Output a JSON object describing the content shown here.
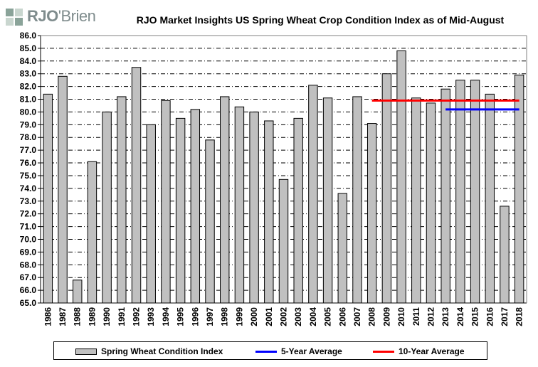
{
  "logo": {
    "text_bold": "RJO",
    "text_rest": "'Brien"
  },
  "chart_data": {
    "type": "bar",
    "title": "RJO Market Insights US Spring Wheat Crop Condition Index as of Mid-August",
    "xlabel": "",
    "ylabel": "",
    "ylim": [
      65.0,
      86.0
    ],
    "ytick_step": 1.0,
    "grid": true,
    "legend_position": "bottom",
    "categories": [
      "1986",
      "1987",
      "1988",
      "1989",
      "1990",
      "1991",
      "1992",
      "1993",
      "1994",
      "1995",
      "1996",
      "1997",
      "1998",
      "1999",
      "2000",
      "2001",
      "2002",
      "2003",
      "2004",
      "2005",
      "2006",
      "2007",
      "2008",
      "2009",
      "2010",
      "2011",
      "2012",
      "2013",
      "2014",
      "2015",
      "2016",
      "2017",
      "2018"
    ],
    "series": [
      {
        "name": "Spring Wheat Condition Index",
        "kind": "bar",
        "color": "#c0c0c0",
        "values": [
          81.4,
          82.8,
          66.8,
          76.1,
          80.0,
          81.2,
          83.5,
          79.0,
          80.9,
          79.5,
          80.2,
          77.8,
          81.2,
          80.4,
          80.0,
          79.3,
          74.7,
          79.5,
          82.1,
          81.1,
          73.6,
          81.2,
          79.1,
          83.0,
          84.8,
          81.1,
          80.7,
          81.8,
          82.5,
          82.5,
          81.4,
          72.6,
          82.9
        ]
      },
      {
        "name": "5-Year Average",
        "kind": "line",
        "color": "#0000ff",
        "x_start": "2013",
        "x_end": "2018",
        "value": 80.2
      },
      {
        "name": "10-Year Average",
        "kind": "line",
        "color": "#ff0000",
        "x_start": "2008",
        "x_end": "2018",
        "value": 80.9
      }
    ]
  }
}
